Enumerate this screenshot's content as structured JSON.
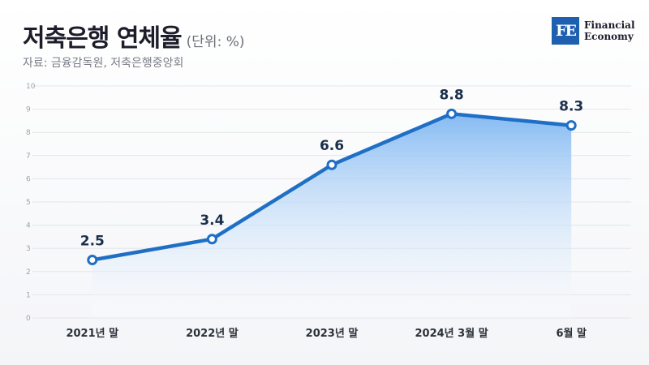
{
  "header": {
    "title": "저축은행 연체율",
    "unit": "(단위: %)",
    "source": "자료: 금융감독원, 저축은행중앙회"
  },
  "logo": {
    "mark": "FE",
    "line1": "Financial",
    "line2": "Economy"
  },
  "colors": {
    "line": "#1f6fc5",
    "fill_top": "#7fb7f2",
    "fill_bottom": "#ffffff",
    "logo_bg": "#1f5fb0"
  },
  "chart_data": {
    "type": "area",
    "categories": [
      "2021년 말",
      "2022년 말",
      "2023년 말",
      "2024년 3월 말",
      "6월 말"
    ],
    "values": [
      2.5,
      3.4,
      6.6,
      8.8,
      8.3
    ],
    "value_labels": [
      "2.5",
      "3.4",
      "6.6",
      "8.8",
      "8.3"
    ],
    "title": "저축은행 연체율",
    "ylim": [
      0,
      10
    ],
    "yticks": [
      "0",
      "1",
      "2",
      "3",
      "4",
      "5",
      "6",
      "7",
      "8",
      "9",
      "10"
    ],
    "grid": true
  }
}
